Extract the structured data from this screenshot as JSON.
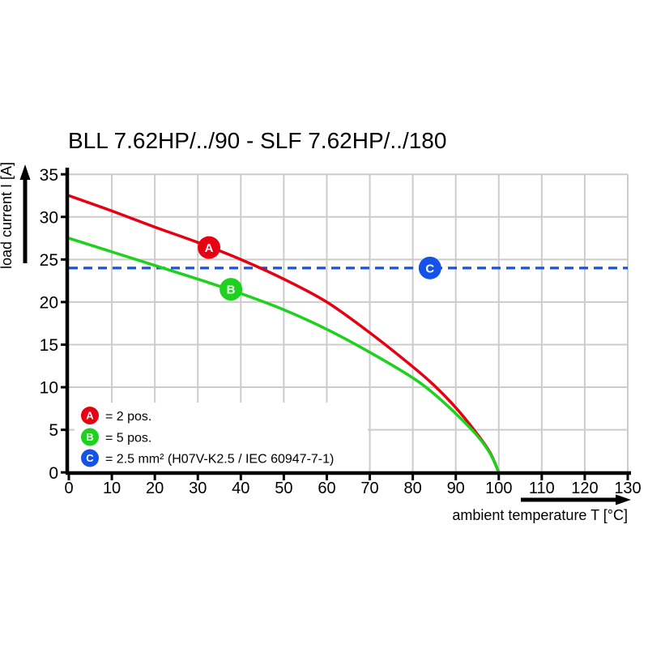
{
  "title": "BLL 7.62HP/../90 - SLF 7.62HP/../180",
  "chart_data": {
    "type": "line",
    "title": "BLL 7.62HP/../90 - SLF 7.62HP/../180",
    "xlabel": "ambient temperature T [°C]",
    "ylabel": "load current I [A]",
    "xlim": [
      0,
      130
    ],
    "ylim": [
      0,
      35
    ],
    "x_ticks": [
      0,
      10,
      20,
      30,
      40,
      50,
      60,
      70,
      80,
      90,
      100,
      110,
      120,
      130
    ],
    "y_ticks": [
      0,
      5,
      10,
      15,
      20,
      25,
      30,
      35
    ],
    "grid": true,
    "legend_position": "bottom-left",
    "series": [
      {
        "name": "A",
        "label": "= 2 pos.",
        "color": "#e60012",
        "style": "solid",
        "marker_at": [
          32.6,
          26.4
        ],
        "points": [
          [
            0,
            32.5
          ],
          [
            10,
            30.7
          ],
          [
            20,
            28.8
          ],
          [
            30,
            27.0
          ],
          [
            40,
            25.0
          ],
          [
            50,
            22.7
          ],
          [
            60,
            20.0
          ],
          [
            70,
            16.4
          ],
          [
            80,
            12.4
          ],
          [
            85,
            10.2
          ],
          [
            90,
            7.6
          ],
          [
            95,
            4.5
          ],
          [
            98,
            2.3
          ],
          [
            100,
            0
          ]
        ]
      },
      {
        "name": "B",
        "label": "= 5 pos.",
        "color": "#1fd11f",
        "style": "solid",
        "marker_at": [
          37.7,
          21.5
        ],
        "points": [
          [
            0,
            27.5
          ],
          [
            10,
            25.9
          ],
          [
            20,
            24.3
          ],
          [
            30,
            22.7
          ],
          [
            40,
            21.0
          ],
          [
            50,
            19.1
          ],
          [
            60,
            16.8
          ],
          [
            70,
            14.1
          ],
          [
            80,
            11.1
          ],
          [
            85,
            9.2
          ],
          [
            90,
            6.9
          ],
          [
            95,
            4.3
          ],
          [
            98,
            2.2
          ],
          [
            100,
            0
          ]
        ]
      },
      {
        "name": "C",
        "label": "= 2.5 mm² (H07V-K2.5 / IEC 60947-7-1)",
        "color": "#1553e8",
        "style": "dashed",
        "marker_at": [
          84,
          24
        ],
        "points": [
          [
            0,
            24
          ],
          [
            130,
            24
          ]
        ]
      }
    ]
  },
  "colors": {
    "background": "#ffffff",
    "axis": "#000000",
    "grid": "#cccccc",
    "series_a": "#e60012",
    "series_b": "#1fd11f",
    "series_c": "#1553e8"
  }
}
